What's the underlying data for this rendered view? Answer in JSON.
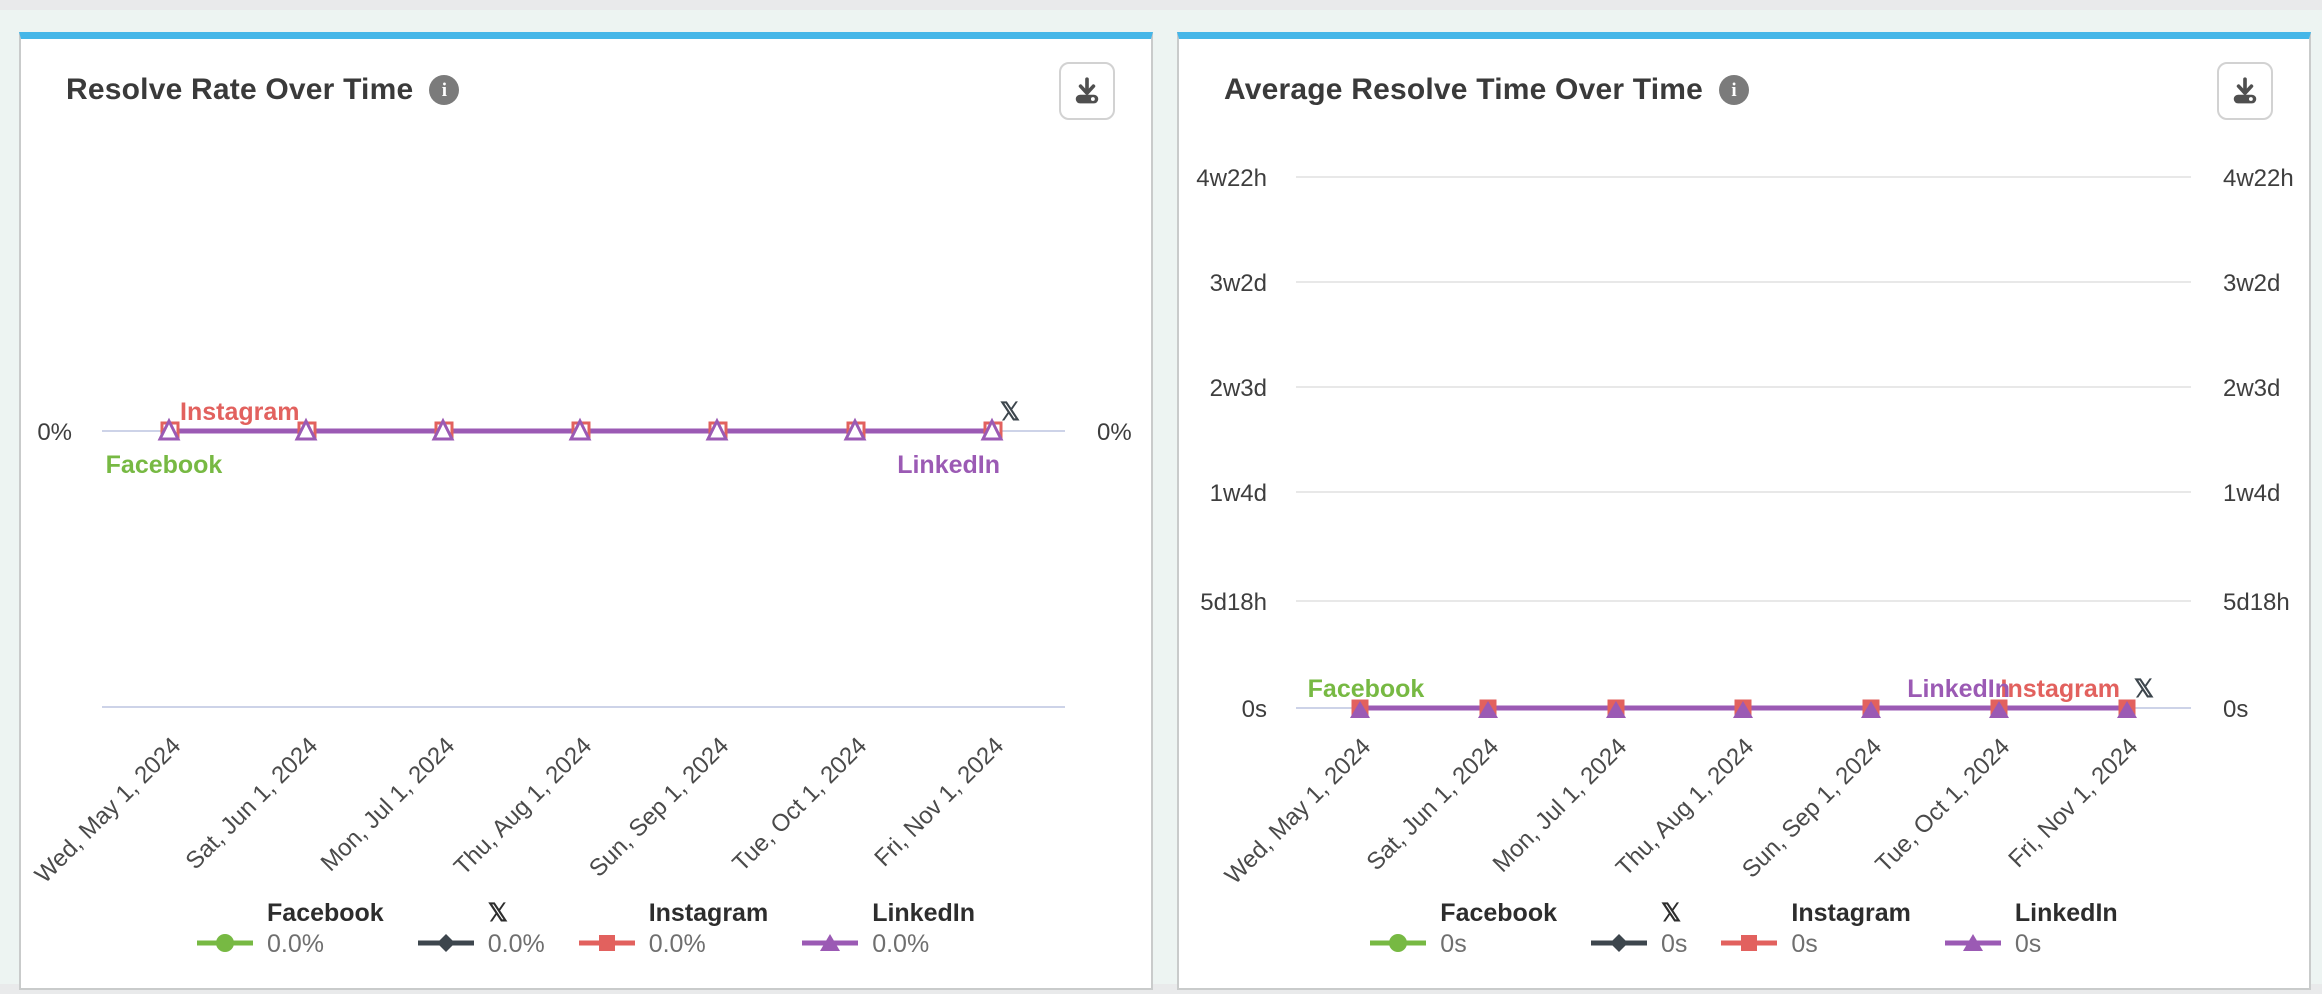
{
  "page": {
    "background": "#e9eaeb",
    "board_background": "#edf4f2",
    "accent_top_border": "#45b6e8",
    "panel_border": "#c9cbcb",
    "grid_color": "#e8e8e8",
    "axis_line_color": "#cdd3e8"
  },
  "panels": [
    {
      "icons": {
        "info": "info-icon",
        "info_glyph": "i",
        "download": "download-icon"
      }
    },
    {
      "icons": {
        "info": "info-icon",
        "info_glyph": "i",
        "download": "download-icon"
      }
    }
  ],
  "chart_data": [
    {
      "type": "line",
      "title": "Resolve Rate Over Time",
      "unit": "%",
      "marker_style": "outline",
      "legend_position": "bottom",
      "grid": false,
      "y_ticks": [
        "0%"
      ],
      "y_axis_both_sides": true,
      "x": [
        "Wed, May 1, 2024",
        "Sat, Jun 1, 2024",
        "Mon, Jul 1, 2024",
        "Thu, Aug 1, 2024",
        "Sun, Sep 1, 2024",
        "Tue, Oct 1, 2024",
        "Fri, Nov 1, 2024"
      ],
      "series": [
        {
          "name": "Facebook",
          "label": "Facebook",
          "color": "#77b943",
          "marker": "circle",
          "values": [
            0,
            0,
            0,
            0,
            0,
            0,
            0
          ],
          "summary": "0.0%",
          "callout": {
            "tick": 0,
            "side": "below",
            "anchor": "middle",
            "dx": -6
          }
        },
        {
          "name": "X",
          "label": "𝕏",
          "color": "#3d464d",
          "marker": "diamond",
          "values": [
            0,
            0,
            0,
            0,
            0,
            0,
            0
          ],
          "summary": "0.0%",
          "callout": {
            "tick": 6,
            "side": "above",
            "anchor": "middle",
            "dx": 17
          }
        },
        {
          "name": "Instagram",
          "label": "Instagram",
          "color": "#e2615e",
          "marker": "square",
          "values": [
            0,
            0,
            0,
            0,
            0,
            0,
            0
          ],
          "summary": "0.0%",
          "callout": {
            "tick": 0,
            "side": "above",
            "anchor": "start",
            "dx": 10
          }
        },
        {
          "name": "LinkedIn",
          "label": "LinkedIn",
          "color": "#9b5ab4",
          "marker": "triangle",
          "values": [
            0,
            0,
            0,
            0,
            0,
            0,
            0
          ],
          "summary": "0.0%",
          "callout": {
            "tick": 6,
            "side": "below",
            "anchor": "end",
            "dx": 7
          }
        }
      ]
    },
    {
      "type": "line",
      "title": "Average Resolve Time Over Time",
      "unit": "duration",
      "marker_style": "filled",
      "legend_position": "bottom",
      "grid": true,
      "y_ticks": [
        "4w22h",
        "3w2d",
        "2w3d",
        "1w4d",
        "5d18h",
        "0s"
      ],
      "y_axis_both_sides": true,
      "x": [
        "Wed, May 1, 2024",
        "Sat, Jun 1, 2024",
        "Mon, Jul 1, 2024",
        "Thu, Aug 1, 2024",
        "Sun, Sep 1, 2024",
        "Tue, Oct 1, 2024",
        "Fri, Nov 1, 2024"
      ],
      "series": [
        {
          "name": "Facebook",
          "label": "Facebook",
          "color": "#77b943",
          "marker": "circle",
          "values": [
            0,
            0,
            0,
            0,
            0,
            0,
            0
          ],
          "summary": "0s",
          "callout": {
            "tick": 0,
            "side": "above",
            "anchor": "middle",
            "dx": 6
          }
        },
        {
          "name": "X",
          "label": "𝕏",
          "color": "#3d464d",
          "marker": "diamond",
          "values": [
            0,
            0,
            0,
            0,
            0,
            0,
            0
          ],
          "summary": "0s",
          "callout": {
            "tick": 6,
            "side": "above",
            "anchor": "middle",
            "dx": 17
          }
        },
        {
          "name": "Instagram",
          "label": "Instagram",
          "color": "#e2615e",
          "marker": "square",
          "values": [
            0,
            0,
            0,
            0,
            0,
            0,
            0
          ],
          "summary": "0s",
          "callout": {
            "tick": 6,
            "side": "above",
            "anchor": "end",
            "dx": -7
          }
        },
        {
          "name": "LinkedIn",
          "label": "LinkedIn",
          "color": "#9b5ab4",
          "marker": "triangle",
          "values": [
            0,
            0,
            0,
            0,
            0,
            0,
            0
          ],
          "summary": "0s",
          "callout": {
            "tick": 5,
            "side": "above",
            "anchor": "end",
            "dx": 11
          }
        }
      ]
    }
  ]
}
